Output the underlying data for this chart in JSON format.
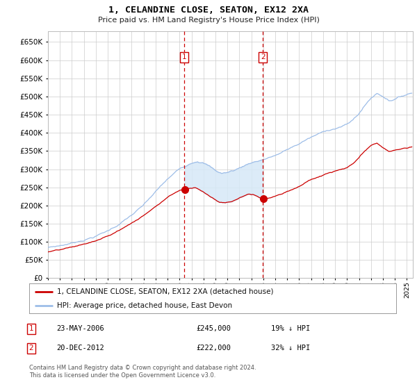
{
  "title": "1, CELANDINE CLOSE, SEATON, EX12 2XA",
  "subtitle": "Price paid vs. HM Land Registry's House Price Index (HPI)",
  "ylim": [
    0,
    680000
  ],
  "yticks": [
    0,
    50000,
    100000,
    150000,
    200000,
    250000,
    300000,
    350000,
    400000,
    450000,
    500000,
    550000,
    600000,
    650000
  ],
  "legend_line1": "1, CELANDINE CLOSE, SEATON, EX12 2XA (detached house)",
  "legend_line2": "HPI: Average price, detached house, East Devon",
  "footnote": "Contains HM Land Registry data © Crown copyright and database right 2024.\nThis data is licensed under the Open Government Licence v3.0.",
  "transaction1_label": "1",
  "transaction1_date": "23-MAY-2006",
  "transaction1_price": "£245,000",
  "transaction1_hpi": "19% ↓ HPI",
  "transaction2_label": "2",
  "transaction2_date": "20-DEC-2012",
  "transaction2_price": "£222,000",
  "transaction2_hpi": "32% ↓ HPI",
  "vline1_x": 2006.38,
  "vline2_x": 2012.97,
  "sale1_price": 245000,
  "sale2_price": 222000,
  "hpi_color": "#9dbde8",
  "price_color": "#cc0000",
  "vline_color": "#cc0000",
  "fill_color": "#d6e8f7",
  "background_color": "#ffffff",
  "grid_color": "#cccccc",
  "label_box_color": "#ffffff",
  "label_box_edge": "#cc0000",
  "xlim_start": 1995,
  "xlim_end": 2025.5
}
